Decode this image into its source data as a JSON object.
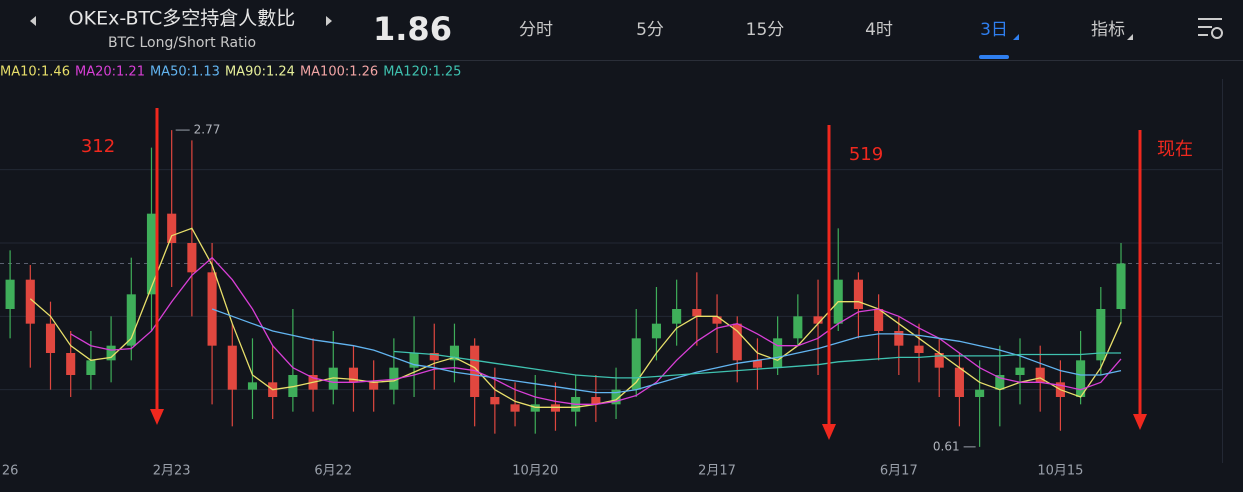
{
  "header": {
    "title": "OKEx-BTC多空持倉人數比",
    "subtitle": "BTC Long/Short Ratio",
    "tabs": [
      "分时",
      "5分",
      "15分",
      "4时",
      "3日",
      "指标"
    ],
    "active_tab": 4
  },
  "chart_data": {
    "type": "candlestick",
    "last": 1.86,
    "ma_legend": [
      {
        "label": "MA10:1.46",
        "color": "#e8df6a"
      },
      {
        "label": "MA20:1.21",
        "color": "#d83fd6"
      },
      {
        "label": "MA50:1.13",
        "color": "#62b4f0"
      },
      {
        "label": "MA90:1.24",
        "color": "#e6ef9a"
      },
      {
        "label": "MA100:1.26",
        "color": "#f2a5a5"
      },
      {
        "label": "MA120:1.25",
        "color": "#3fc2b0"
      }
    ],
    "annotations": [
      "312",
      "519",
      "现在"
    ],
    "x": [
      0,
      1,
      2,
      3,
      4,
      5,
      6,
      7,
      8,
      9,
      10,
      11,
      12,
      13,
      14,
      15,
      16,
      17,
      18,
      19,
      20,
      21,
      22,
      23,
      24,
      25,
      26,
      27,
      28,
      29,
      30,
      31,
      32,
      33,
      34,
      35,
      36,
      37,
      38,
      39,
      40,
      41,
      42,
      43,
      44,
      45,
      46,
      47,
      48,
      49,
      50,
      51,
      52,
      53,
      54,
      55
    ],
    "open": [
      1.55,
      1.75,
      1.45,
      1.25,
      1.1,
      1.2,
      1.3,
      1.65,
      2.2,
      2.0,
      1.8,
      1.3,
      1.0,
      1.05,
      0.95,
      1.1,
      1.0,
      1.15,
      1.05,
      1.0,
      1.15,
      1.25,
      1.2,
      1.3,
      0.95,
      0.9,
      0.85,
      0.9,
      0.85,
      0.95,
      0.9,
      1.0,
      1.35,
      1.45,
      1.55,
      1.5,
      1.45,
      1.2,
      1.15,
      1.35,
      1.5,
      1.45,
      1.75,
      1.55,
      1.4,
      1.3,
      1.25,
      1.15,
      0.95,
      1.0,
      1.1,
      1.15,
      1.05,
      0.95,
      1.2,
      1.55
    ],
    "high": [
      1.95,
      1.85,
      1.6,
      1.4,
      1.4,
      1.5,
      1.9,
      2.65,
      2.77,
      2.7,
      2.0,
      1.45,
      1.35,
      1.3,
      1.55,
      1.35,
      1.4,
      1.3,
      1.2,
      1.35,
      1.5,
      1.45,
      1.45,
      1.35,
      1.15,
      1.05,
      1.1,
      1.05,
      1.1,
      1.1,
      1.15,
      1.55,
      1.7,
      1.75,
      1.8,
      1.65,
      1.5,
      1.35,
      1.5,
      1.65,
      1.75,
      2.1,
      1.8,
      1.65,
      1.5,
      1.45,
      1.35,
      1.25,
      1.2,
      1.3,
      1.35,
      1.3,
      1.2,
      1.4,
      1.7,
      2.0
    ],
    "low": [
      1.35,
      1.15,
      1.0,
      0.95,
      1.0,
      1.05,
      1.2,
      1.4,
      1.7,
      1.5,
      0.9,
      0.75,
      0.8,
      0.8,
      0.85,
      0.85,
      0.9,
      0.85,
      0.85,
      0.9,
      0.95,
      1.0,
      1.05,
      0.75,
      0.7,
      0.75,
      0.7,
      0.72,
      0.75,
      0.78,
      0.8,
      0.95,
      1.2,
      1.3,
      1.3,
      1.25,
      1.05,
      1.0,
      1.1,
      1.3,
      1.1,
      1.4,
      1.35,
      1.2,
      1.1,
      1.05,
      0.95,
      0.75,
      0.61,
      0.75,
      0.9,
      0.85,
      0.72,
      0.9,
      1.1,
      1.45
    ],
    "close": [
      1.75,
      1.45,
      1.25,
      1.1,
      1.2,
      1.3,
      1.65,
      2.2,
      2.0,
      1.8,
      1.3,
      1.0,
      1.05,
      0.95,
      1.1,
      1.0,
      1.15,
      1.05,
      1.0,
      1.15,
      1.25,
      1.2,
      1.3,
      0.95,
      0.9,
      0.85,
      0.9,
      0.85,
      0.95,
      0.9,
      1.0,
      1.35,
      1.45,
      1.55,
      1.5,
      1.45,
      1.2,
      1.15,
      1.35,
      1.5,
      1.45,
      1.75,
      1.55,
      1.4,
      1.3,
      1.25,
      1.15,
      0.95,
      1.0,
      1.1,
      1.15,
      1.05,
      0.95,
      1.2,
      1.55,
      1.86
    ],
    "up_color": "#3fae5a",
    "down_color": "#e0473f",
    "lines": [
      {
        "color": "#e8df6a",
        "values": [
          null,
          1.62,
          1.5,
          1.3,
          1.2,
          1.22,
          1.35,
          1.7,
          2.05,
          2.1,
          1.85,
          1.45,
          1.1,
          1.0,
          1.02,
          1.05,
          1.08,
          1.07,
          1.05,
          1.06,
          1.12,
          1.18,
          1.22,
          1.15,
          1.0,
          0.92,
          0.88,
          0.88,
          0.88,
          0.9,
          0.93,
          1.05,
          1.25,
          1.42,
          1.5,
          1.5,
          1.4,
          1.25,
          1.2,
          1.3,
          1.45,
          1.6,
          1.6,
          1.55,
          1.45,
          1.35,
          1.25,
          1.15,
          1.05,
          1.0,
          1.05,
          1.08,
          1.0,
          0.95,
          1.15,
          1.46
        ]
      },
      {
        "color": "#d83fd6",
        "values": [
          null,
          null,
          null,
          1.38,
          1.3,
          1.27,
          1.28,
          1.4,
          1.6,
          1.78,
          1.9,
          1.75,
          1.55,
          1.3,
          1.15,
          1.08,
          1.05,
          1.05,
          1.06,
          1.07,
          1.1,
          1.14,
          1.15,
          1.13,
          1.07,
          1.0,
          0.95,
          0.92,
          0.9,
          0.9,
          0.92,
          0.96,
          1.05,
          1.2,
          1.33,
          1.42,
          1.45,
          1.38,
          1.3,
          1.3,
          1.35,
          1.45,
          1.53,
          1.55,
          1.5,
          1.42,
          1.35,
          1.25,
          1.15,
          1.08,
          1.05,
          1.05,
          1.03,
          1.0,
          1.05,
          1.21
        ]
      },
      {
        "color": "#62b4f0",
        "values": [
          null,
          null,
          null,
          null,
          null,
          null,
          null,
          null,
          null,
          null,
          1.55,
          1.5,
          1.45,
          1.4,
          1.37,
          1.34,
          1.32,
          1.3,
          1.27,
          1.22,
          1.17,
          1.15,
          1.12,
          1.1,
          1.08,
          1.06,
          1.04,
          1.02,
          1.0,
          0.98,
          0.98,
          1.0,
          1.04,
          1.08,
          1.12,
          1.15,
          1.18,
          1.2,
          1.22,
          1.25,
          1.28,
          1.32,
          1.36,
          1.38,
          1.38,
          1.37,
          1.35,
          1.33,
          1.3,
          1.27,
          1.23,
          1.18,
          1.13,
          1.1,
          1.1,
          1.13
        ]
      },
      {
        "color": "#3fc2b0",
        "values": [
          null,
          null,
          null,
          null,
          null,
          null,
          null,
          null,
          null,
          null,
          null,
          null,
          null,
          null,
          null,
          null,
          null,
          null,
          null,
          1.26,
          1.25,
          1.24,
          1.22,
          1.2,
          1.18,
          1.16,
          1.14,
          1.12,
          1.1,
          1.09,
          1.08,
          1.08,
          1.09,
          1.1,
          1.11,
          1.12,
          1.13,
          1.14,
          1.15,
          1.16,
          1.17,
          1.19,
          1.2,
          1.21,
          1.22,
          1.22,
          1.23,
          1.23,
          1.23,
          1.23,
          1.24,
          1.24,
          1.24,
          1.24,
          1.25,
          1.25
        ]
      }
    ],
    "xlim": [
      -0.5,
      60
    ],
    "xticks": [
      {
        "value": 0,
        "label": "26"
      },
      {
        "value": 8,
        "label": "2月23"
      },
      {
        "value": 16,
        "label": "6月22"
      },
      {
        "value": 26,
        "label": "10月20"
      },
      {
        "value": 35,
        "label": "2月17"
      },
      {
        "value": 44,
        "label": "6月17"
      },
      {
        "value": 52,
        "label": "10月15"
      }
    ],
    "ylim": [
      0.5,
      3.05
    ],
    "yticks": [
      1,
      1.5,
      2,
      2.5
    ],
    "grid": true
  }
}
